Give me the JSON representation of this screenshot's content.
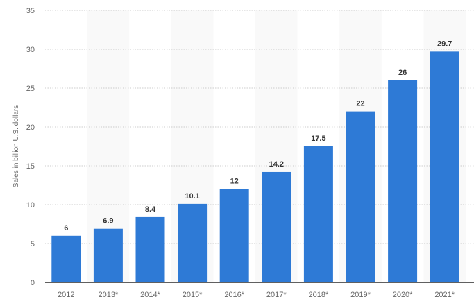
{
  "chart_data": {
    "type": "bar",
    "categories": [
      "2012",
      "2013*",
      "2014*",
      "2015*",
      "2016*",
      "2017*",
      "2018*",
      "2019*",
      "2020*",
      "2021*"
    ],
    "values": [
      6,
      6.9,
      8.4,
      10.1,
      12,
      14.2,
      17.5,
      22,
      26,
      29.7
    ],
    "data_labels": [
      "6",
      "6.9",
      "8.4",
      "10.1",
      "12",
      "14.2",
      "17.5",
      "22",
      "26",
      "29.7"
    ],
    "title": "",
    "xlabel": "",
    "ylabel": "Sales in billion U.S. dollars",
    "ylim": [
      0,
      35
    ],
    "yticks": [
      0,
      5,
      10,
      15,
      20,
      25,
      30,
      35
    ],
    "grid": true,
    "bar_color": "#2e7ad6",
    "band_color": "#f9f9f9"
  }
}
